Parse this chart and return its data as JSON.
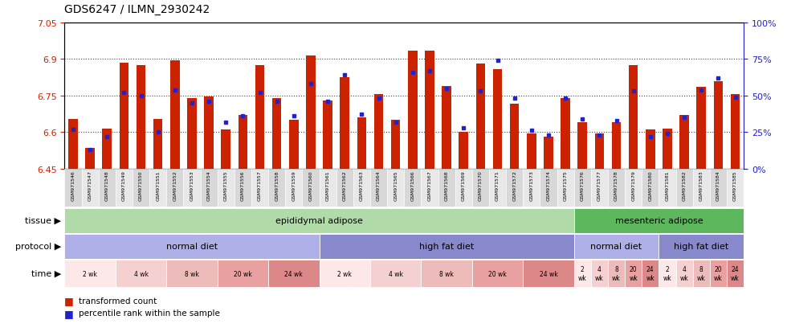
{
  "title": "GDS6247 / ILMN_2930242",
  "samples": [
    "GSM971546",
    "GSM971547",
    "GSM971548",
    "GSM971549",
    "GSM971550",
    "GSM971551",
    "GSM971552",
    "GSM971553",
    "GSM971554",
    "GSM971555",
    "GSM971556",
    "GSM971557",
    "GSM971558",
    "GSM971559",
    "GSM971560",
    "GSM971561",
    "GSM971562",
    "GSM971563",
    "GSM971564",
    "GSM971565",
    "GSM971566",
    "GSM971567",
    "GSM971568",
    "GSM971569",
    "GSM971570",
    "GSM971571",
    "GSM971572",
    "GSM971573",
    "GSM971574",
    "GSM971575",
    "GSM971576",
    "GSM971577",
    "GSM971578",
    "GSM971579",
    "GSM971580",
    "GSM971581",
    "GSM971582",
    "GSM971583",
    "GSM971584",
    "GSM971585"
  ],
  "bar_values": [
    6.655,
    6.535,
    6.615,
    6.885,
    6.875,
    6.655,
    6.895,
    6.74,
    6.745,
    6.61,
    6.67,
    6.875,
    6.74,
    6.65,
    6.915,
    6.73,
    6.825,
    6.66,
    6.755,
    6.65,
    6.935,
    6.935,
    6.79,
    6.6,
    6.88,
    6.86,
    6.715,
    6.595,
    6.58,
    6.74,
    6.64,
    6.595,
    6.64,
    6.875,
    6.61,
    6.615,
    6.67,
    6.785,
    6.81,
    6.755
  ],
  "percentile_values_raw": [
    27,
    13,
    22,
    52,
    50,
    25,
    54,
    45,
    46,
    32,
    36,
    52,
    46,
    36,
    58,
    46,
    64,
    37,
    48,
    32,
    66,
    67,
    55,
    28,
    53,
    74,
    48,
    26,
    23,
    48,
    34,
    23,
    33,
    53,
    22,
    24,
    35,
    54,
    62,
    49
  ],
  "y_min": 6.45,
  "y_max": 7.05,
  "y_ticks": [
    6.45,
    6.6,
    6.75,
    6.9,
    7.05
  ],
  "right_y_ticks": [
    0,
    25,
    50,
    75,
    100
  ],
  "right_y_labels": [
    "0%",
    "25%",
    "50%",
    "75%",
    "100%"
  ],
  "bar_color": "#cc2200",
  "blue_color": "#2222cc",
  "bg_color": "#ffffff",
  "tick_label_color": "#cc2200",
  "right_tick_color": "#2222cc",
  "tissue_groups": [
    {
      "label": "epididymal adipose",
      "start": 0,
      "end": 29,
      "color": "#b0dba8"
    },
    {
      "label": "mesenteric adipose",
      "start": 30,
      "end": 39,
      "color": "#5db85d"
    }
  ],
  "protocol_groups": [
    {
      "label": "normal diet",
      "start": 0,
      "end": 14,
      "color": "#b0b0e8"
    },
    {
      "label": "high fat diet",
      "start": 15,
      "end": 29,
      "color": "#8888cc"
    },
    {
      "label": "normal diet",
      "start": 30,
      "end": 34,
      "color": "#b0b0e8"
    },
    {
      "label": "high fat diet",
      "start": 35,
      "end": 39,
      "color": "#8888cc"
    }
  ],
  "time_groups": [
    {
      "label": "2 wk",
      "start": 0,
      "end": 2,
      "color": "#fce8e8"
    },
    {
      "label": "4 wk",
      "start": 3,
      "end": 5,
      "color": "#f5d0d0"
    },
    {
      "label": "8 wk",
      "start": 6,
      "end": 8,
      "color": "#eebbbb"
    },
    {
      "label": "20 wk",
      "start": 9,
      "end": 11,
      "color": "#e8a0a0"
    },
    {
      "label": "24 wk",
      "start": 12,
      "end": 14,
      "color": "#dd8888"
    },
    {
      "label": "2 wk",
      "start": 15,
      "end": 17,
      "color": "#fce8e8"
    },
    {
      "label": "4 wk",
      "start": 18,
      "end": 20,
      "color": "#f5d0d0"
    },
    {
      "label": "8 wk",
      "start": 21,
      "end": 23,
      "color": "#eebbbb"
    },
    {
      "label": "20 wk",
      "start": 24,
      "end": 26,
      "color": "#e8a0a0"
    },
    {
      "label": "24 wk",
      "start": 27,
      "end": 29,
      "color": "#dd8888"
    },
    {
      "label": "2\nwk",
      "start": 30,
      "end": 30,
      "color": "#fce8e8"
    },
    {
      "label": "4\nwk",
      "start": 31,
      "end": 31,
      "color": "#f5d0d0"
    },
    {
      "label": "8\nwk",
      "start": 32,
      "end": 32,
      "color": "#eebbbb"
    },
    {
      "label": "20\nwk",
      "start": 33,
      "end": 33,
      "color": "#e8a0a0"
    },
    {
      "label": "24\nwk",
      "start": 34,
      "end": 34,
      "color": "#dd8888"
    },
    {
      "label": "2\nwk",
      "start": 35,
      "end": 35,
      "color": "#fce8e8"
    },
    {
      "label": "4\nwk",
      "start": 36,
      "end": 36,
      "color": "#f5d0d0"
    },
    {
      "label": "8\nwk",
      "start": 37,
      "end": 37,
      "color": "#eebbbb"
    },
    {
      "label": "20\nwk",
      "start": 38,
      "end": 38,
      "color": "#e8a0a0"
    },
    {
      "label": "24\nwk",
      "start": 39,
      "end": 39,
      "color": "#dd8888"
    }
  ],
  "legend_items": [
    {
      "color": "#cc2200",
      "label": "transformed count"
    },
    {
      "color": "#2222cc",
      "label": "percentile rank within the sample"
    }
  ]
}
